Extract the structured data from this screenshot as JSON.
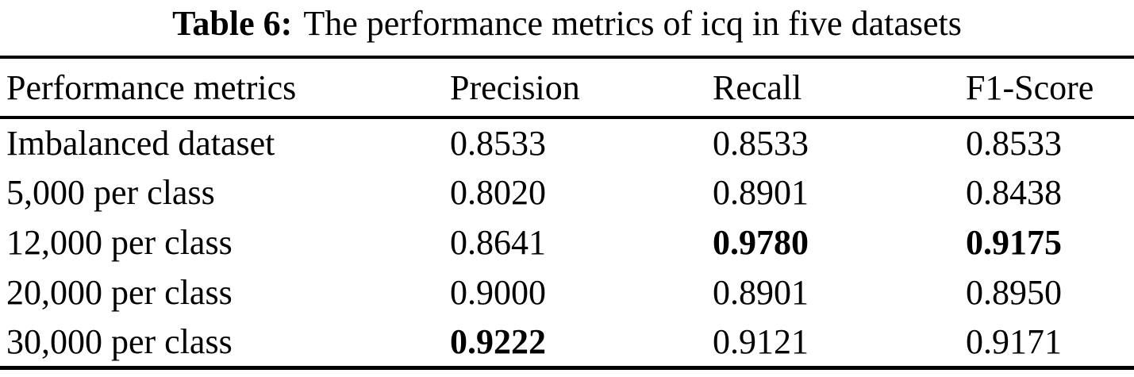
{
  "caption": {
    "label": "Table 6:",
    "text": "The performance metrics of icq in five datasets"
  },
  "table": {
    "columns": [
      "Performance metrics",
      "Precision",
      "Recall",
      "F1-Score"
    ],
    "rows": [
      {
        "metric": "Imbalanced dataset",
        "precision": "0.8533",
        "recall": "0.8533",
        "f1_score": "0.8533",
        "bold_cells": []
      },
      {
        "metric": "5,000 per class",
        "precision": "0.8020",
        "recall": "0.8901",
        "f1_score": "0.8438",
        "bold_cells": []
      },
      {
        "metric": "12,000 per class",
        "precision": "0.8641",
        "recall": "0.9780",
        "f1_score": "0.9175",
        "bold_cells": [
          "recall",
          "f1_score"
        ]
      },
      {
        "metric": "20,000 per class",
        "precision": "0.9000",
        "recall": "0.8901",
        "f1_score": "0.8950",
        "bold_cells": []
      },
      {
        "metric": "30,000 per class",
        "precision": "0.9222",
        "recall": "0.9121",
        "f1_score": "0.9171",
        "bold_cells": [
          "precision"
        ]
      }
    ]
  },
  "colors": {
    "text": "#000000",
    "background": "#ffffff",
    "rule": "#000000"
  }
}
